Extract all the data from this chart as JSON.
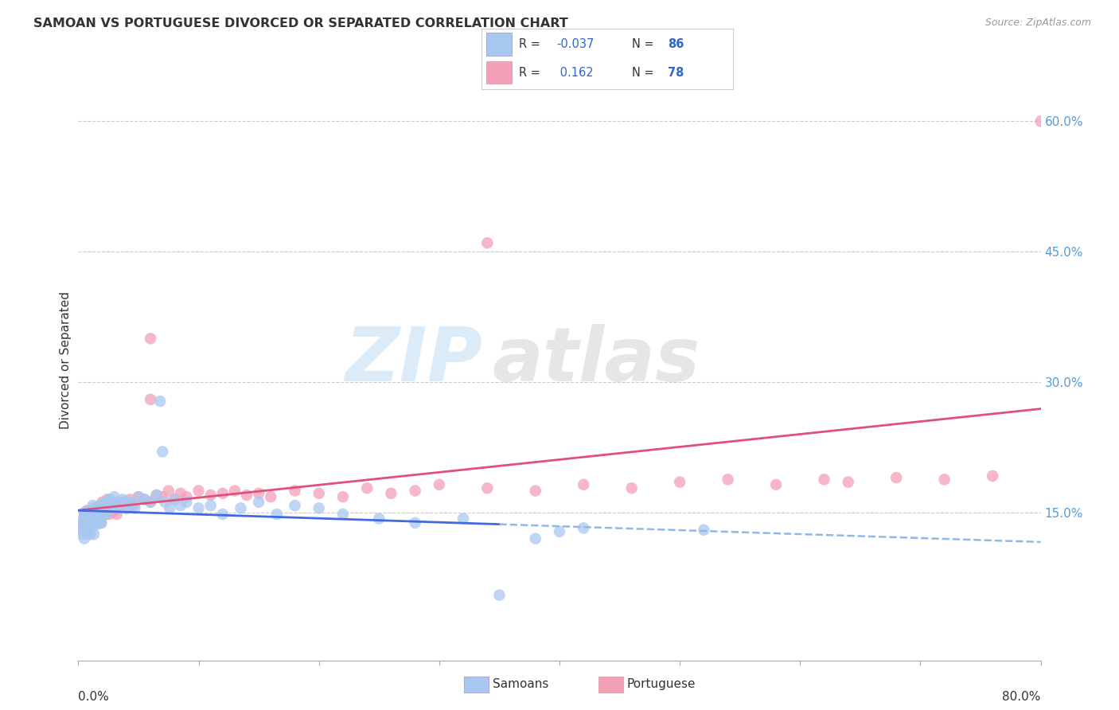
{
  "title": "SAMOAN VS PORTUGUESE DIVORCED OR SEPARATED CORRELATION CHART",
  "source": "Source: ZipAtlas.com",
  "ylabel": "Divorced or Separated",
  "ytick_labels": [
    "15.0%",
    "30.0%",
    "45.0%",
    "60.0%"
  ],
  "ytick_values": [
    0.15,
    0.3,
    0.45,
    0.6
  ],
  "xlim": [
    0.0,
    0.8
  ],
  "ylim": [
    -0.02,
    0.67
  ],
  "legend_r_samoan": "-0.037",
  "legend_n_samoan": "86",
  "legend_r_portuguese": "0.162",
  "legend_n_portuguese": "78",
  "samoan_color": "#a8c8f0",
  "portuguese_color": "#f4a0b8",
  "samoan_line_color": "#4169e1",
  "samoan_dash_color": "#90b8e8",
  "portuguese_line_color": "#e0507a",
  "watermark_zip": "ZIP",
  "watermark_atlas": "atlas",
  "background_color": "#ffffff",
  "samoan_x": [
    0.002,
    0.003,
    0.004,
    0.004,
    0.005,
    0.005,
    0.005,
    0.006,
    0.006,
    0.007,
    0.007,
    0.007,
    0.008,
    0.008,
    0.008,
    0.009,
    0.009,
    0.01,
    0.01,
    0.01,
    0.011,
    0.011,
    0.012,
    0.012,
    0.013,
    0.013,
    0.013,
    0.014,
    0.014,
    0.015,
    0.015,
    0.016,
    0.016,
    0.017,
    0.017,
    0.018,
    0.018,
    0.019,
    0.019,
    0.02,
    0.02,
    0.021,
    0.022,
    0.023,
    0.024,
    0.025,
    0.026,
    0.027,
    0.028,
    0.03,
    0.031,
    0.033,
    0.035,
    0.037,
    0.04,
    0.042,
    0.044,
    0.047,
    0.05,
    0.055,
    0.06,
    0.065,
    0.068,
    0.072,
    0.076,
    0.08,
    0.085,
    0.09,
    0.1,
    0.11,
    0.12,
    0.135,
    0.15,
    0.165,
    0.18,
    0.2,
    0.22,
    0.25,
    0.28,
    0.32,
    0.35,
    0.38,
    0.4,
    0.42,
    0.52,
    0.07
  ],
  "samoan_y": [
    0.13,
    0.125,
    0.14,
    0.135,
    0.145,
    0.12,
    0.15,
    0.135,
    0.128,
    0.142,
    0.132,
    0.148,
    0.138,
    0.152,
    0.125,
    0.143,
    0.133,
    0.148,
    0.136,
    0.125,
    0.152,
    0.14,
    0.145,
    0.158,
    0.138,
    0.148,
    0.125,
    0.152,
    0.142,
    0.148,
    0.136,
    0.155,
    0.143,
    0.15,
    0.14,
    0.158,
    0.145,
    0.148,
    0.138,
    0.155,
    0.145,
    0.16,
    0.153,
    0.148,
    0.163,
    0.155,
    0.165,
    0.158,
    0.155,
    0.168,
    0.155,
    0.162,
    0.158,
    0.165,
    0.155,
    0.162,
    0.158,
    0.155,
    0.168,
    0.165,
    0.162,
    0.17,
    0.278,
    0.162,
    0.155,
    0.165,
    0.158,
    0.162,
    0.155,
    0.158,
    0.148,
    0.155,
    0.162,
    0.148,
    0.158,
    0.155,
    0.148,
    0.143,
    0.138,
    0.143,
    0.055,
    0.12,
    0.128,
    0.132,
    0.13,
    0.22
  ],
  "portuguese_x": [
    0.003,
    0.004,
    0.005,
    0.005,
    0.006,
    0.007,
    0.007,
    0.008,
    0.008,
    0.009,
    0.01,
    0.01,
    0.011,
    0.011,
    0.012,
    0.013,
    0.013,
    0.014,
    0.015,
    0.015,
    0.016,
    0.017,
    0.018,
    0.019,
    0.02,
    0.021,
    0.022,
    0.023,
    0.024,
    0.025,
    0.026,
    0.028,
    0.03,
    0.032,
    0.035,
    0.038,
    0.04,
    0.043,
    0.046,
    0.05,
    0.055,
    0.06,
    0.065,
    0.07,
    0.075,
    0.08,
    0.085,
    0.09,
    0.1,
    0.11,
    0.12,
    0.13,
    0.14,
    0.15,
    0.16,
    0.18,
    0.2,
    0.22,
    0.24,
    0.26,
    0.28,
    0.3,
    0.34,
    0.38,
    0.42,
    0.46,
    0.5,
    0.54,
    0.58,
    0.62,
    0.64,
    0.68,
    0.72,
    0.76,
    0.8,
    0.34,
    0.06,
    0.06
  ],
  "portuguese_y": [
    0.14,
    0.132,
    0.148,
    0.138,
    0.143,
    0.138,
    0.152,
    0.143,
    0.13,
    0.148,
    0.142,
    0.133,
    0.152,
    0.14,
    0.148,
    0.138,
    0.155,
    0.143,
    0.152,
    0.138,
    0.155,
    0.143,
    0.148,
    0.138,
    0.162,
    0.148,
    0.155,
    0.148,
    0.165,
    0.158,
    0.148,
    0.162,
    0.152,
    0.148,
    0.158,
    0.162,
    0.155,
    0.165,
    0.158,
    0.168,
    0.165,
    0.162,
    0.17,
    0.168,
    0.175,
    0.165,
    0.172,
    0.168,
    0.175,
    0.17,
    0.172,
    0.175,
    0.17,
    0.172,
    0.168,
    0.175,
    0.172,
    0.168,
    0.178,
    0.172,
    0.175,
    0.182,
    0.178,
    0.175,
    0.182,
    0.178,
    0.185,
    0.188,
    0.182,
    0.188,
    0.185,
    0.19,
    0.188,
    0.192,
    0.6,
    0.46,
    0.35,
    0.28
  ]
}
